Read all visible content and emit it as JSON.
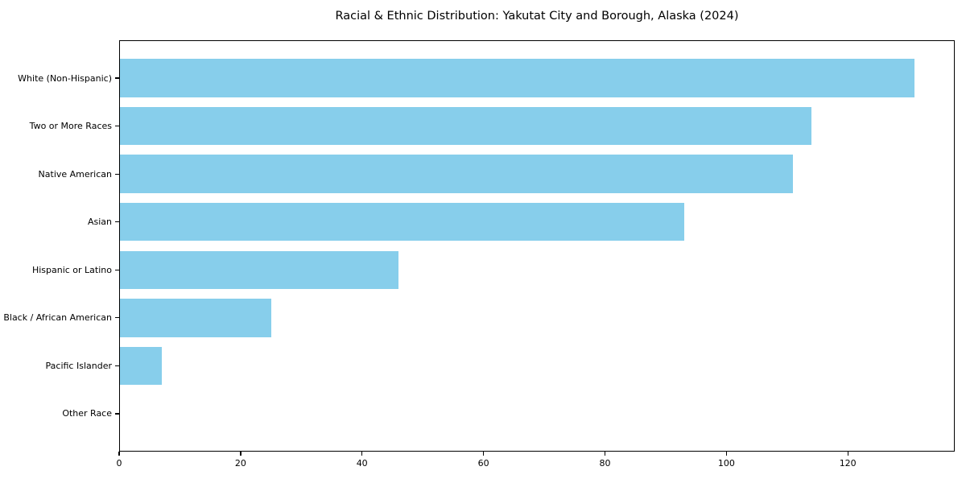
{
  "chart_data": {
    "type": "bar",
    "orientation": "horizontal",
    "title": "Racial & Ethnic Distribution: Yakutat City and Borough, Alaska (2024)",
    "categories": [
      "White (Non-Hispanic)",
      "Two or More Races",
      "Native American",
      "Asian",
      "Hispanic or Latino",
      "Black / African American",
      "Pacific Islander",
      "Other Race"
    ],
    "values": [
      131,
      114,
      111,
      93,
      46,
      25,
      7,
      0
    ],
    "xlabel": "",
    "ylabel": "",
    "xlim": [
      0,
      137.6
    ],
    "x_ticks": [
      0,
      20,
      40,
      60,
      80,
      100,
      120
    ],
    "bar_color": "#87CEEB",
    "axis_color": "#000000",
    "text_color": "#000000",
    "background_color": "#FFFFFF",
    "grid": false,
    "legend": "none",
    "bar_height_fraction": 0.8
  }
}
